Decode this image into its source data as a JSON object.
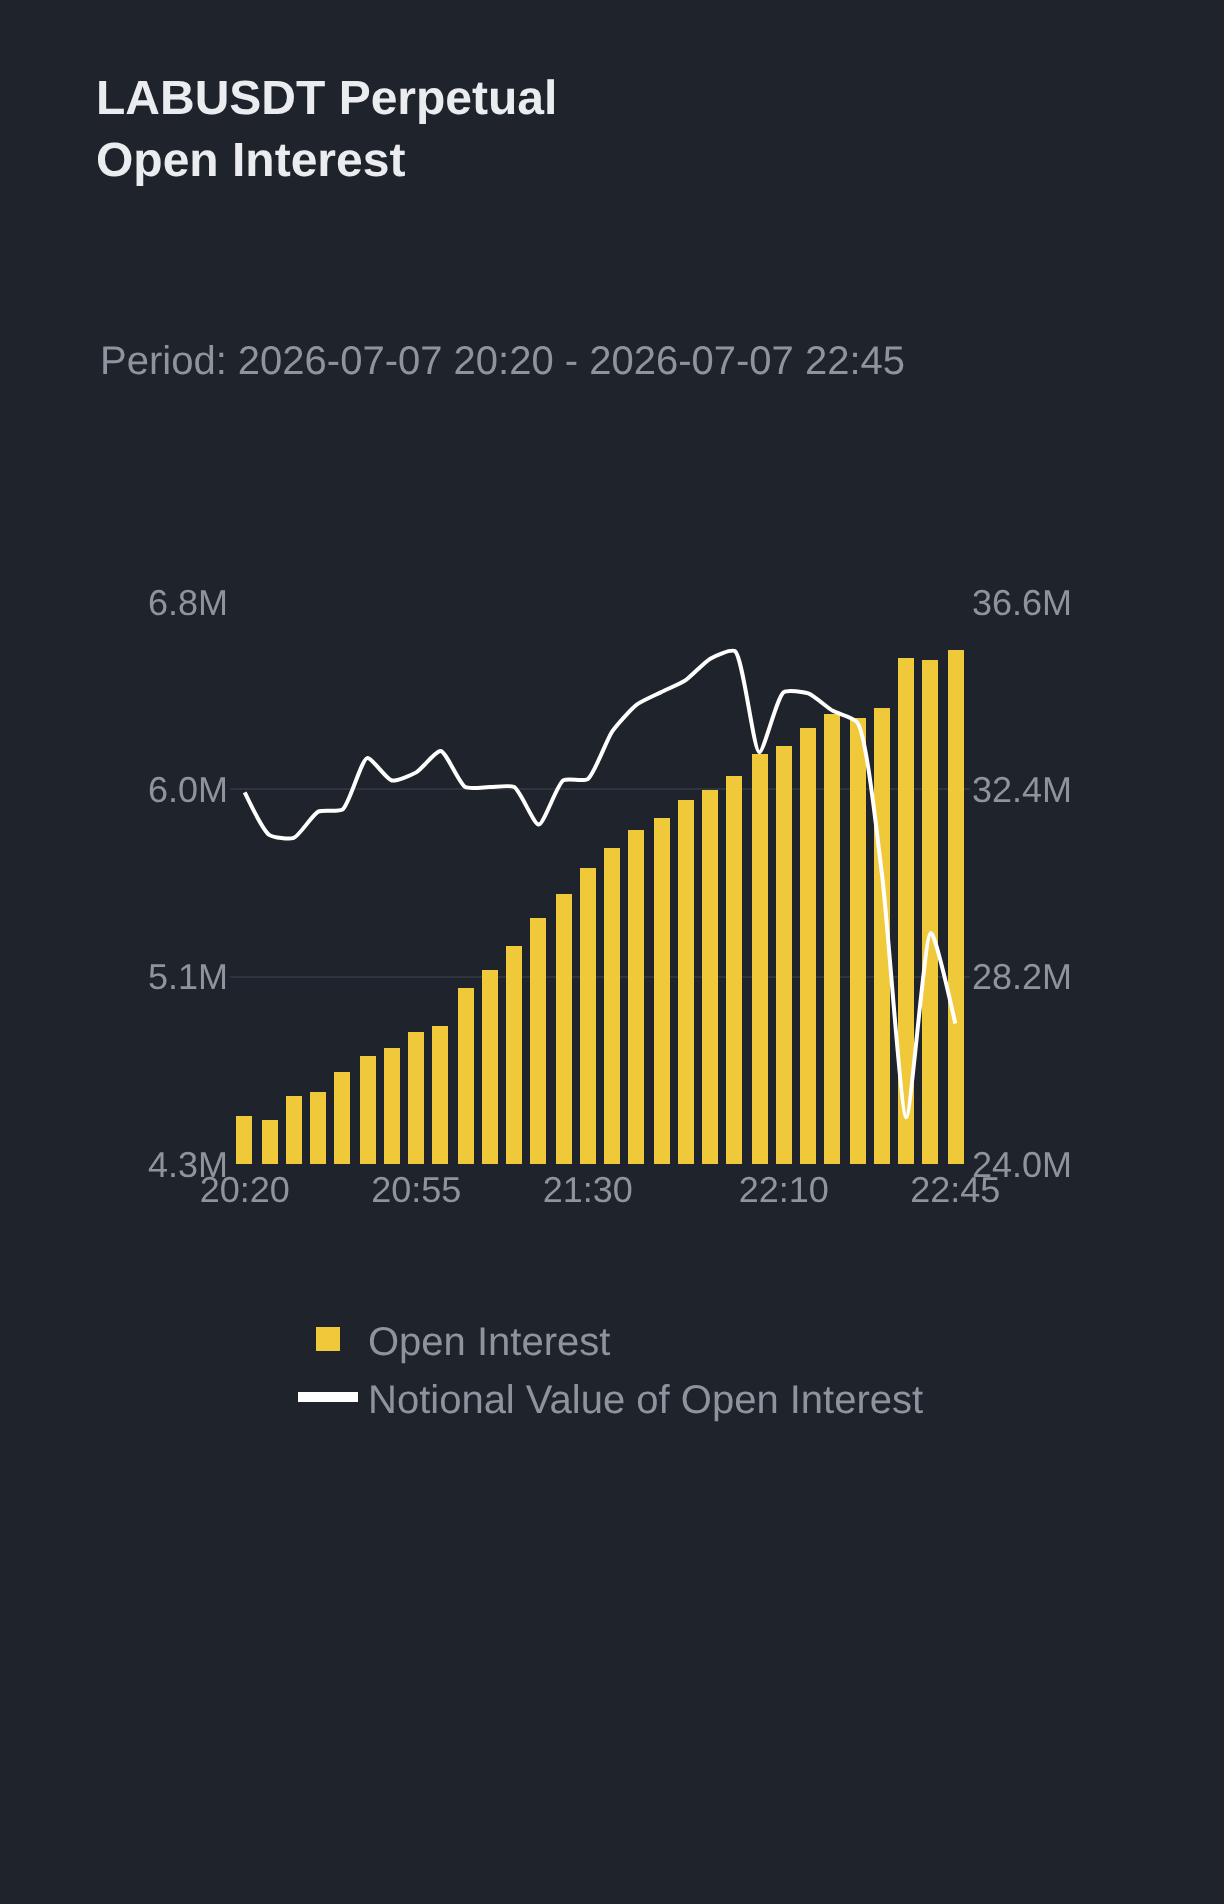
{
  "chart_data": {
    "type": "bar",
    "title": "LABUSDT Perpetual\nOpen Interest",
    "subtitle": "Period: 2026-07-07 20:20 - 2026-07-07 22:45",
    "x": [
      "2026-07-07T20:20",
      "2026-07-07T20:25",
      "2026-07-07T20:30",
      "2026-07-07T20:35",
      "2026-07-07T20:40",
      "2026-07-07T20:45",
      "2026-07-07T20:50",
      "2026-07-07T20:55",
      "2026-07-07T21:00",
      "2026-07-07T21:05",
      "2026-07-07T21:10",
      "2026-07-07T21:15",
      "2026-07-07T21:20",
      "2026-07-07T21:25",
      "2026-07-07T21:30",
      "2026-07-07T21:35",
      "2026-07-07T21:40",
      "2026-07-07T21:45",
      "2026-07-07T21:50",
      "2026-07-07T21:55",
      "2026-07-07T22:00",
      "2026-07-07T22:05",
      "2026-07-07T22:10",
      "2026-07-07T22:15",
      "2026-07-07T22:20",
      "2026-07-07T22:25",
      "2026-07-07T22:30",
      "2026-07-07T22:35",
      "2026-07-07T22:40",
      "2026-07-07T22:45"
    ],
    "series": [
      {
        "name": "Open Interest",
        "color": "#f0c93a",
        "values": [
          4.51,
          4.5,
          4.6,
          4.62,
          4.71,
          4.78,
          4.82,
          4.89,
          4.91,
          5.08,
          5.16,
          5.27,
          5.39,
          5.5,
          5.62,
          5.71,
          5.79,
          5.84,
          5.92,
          5.96,
          6.03,
          6.12,
          6.16,
          6.24,
          6.3,
          6.28,
          6.33,
          6.55,
          6.54,
          6.59
        ]
      },
      {
        "name": "Notional Value of Open Interest",
        "type": "line",
        "axis": "y2",
        "color": "#ffffff",
        "values": [
          32.33,
          31.38,
          31.31,
          31.9,
          31.95,
          33.1,
          32.6,
          32.78,
          33.26,
          32.45,
          32.45,
          32.45,
          31.61,
          32.6,
          32.63,
          33.7,
          34.3,
          34.58,
          34.85,
          35.33,
          35.5,
          33.23,
          34.58,
          34.55,
          34.16,
          33.9,
          30.53,
          25.05,
          29.18,
          27.15
        ]
      }
    ],
    "xlim": [
      "2026-07-07T20:17",
      "2026-07-07T22:48"
    ],
    "xticks": [
      {
        "value": "2026-07-07T20:20",
        "label": "20:20"
      },
      {
        "value": "2026-07-07T20:55",
        "label": "20:55"
      },
      {
        "value": "2026-07-07T21:30",
        "label": "21:30"
      },
      {
        "value": "2026-07-07T22:10",
        "label": "22:10"
      },
      {
        "value": "2026-07-07T22:45",
        "label": "22:45"
      }
    ],
    "ylim": [
      4.3,
      6.8
    ],
    "yticks": [
      {
        "value": 4.3,
        "label": "4.3M"
      },
      {
        "value": 5.1333,
        "label": "5.1M"
      },
      {
        "value": 5.9667,
        "label": "6.0M"
      },
      {
        "value": 6.8,
        "label": "6.8M"
      }
    ],
    "y2lim": [
      24.0,
      36.6
    ],
    "y2ticks": [
      {
        "value": 24.0,
        "label": "24.0M"
      },
      {
        "value": 28.2,
        "label": "28.2M"
      },
      {
        "value": 32.4,
        "label": "32.4M"
      },
      {
        "value": 36.6,
        "label": "36.6M"
      }
    ],
    "grid": "y",
    "legend": "bottom",
    "marker": "none",
    "line_style": "solid"
  }
}
